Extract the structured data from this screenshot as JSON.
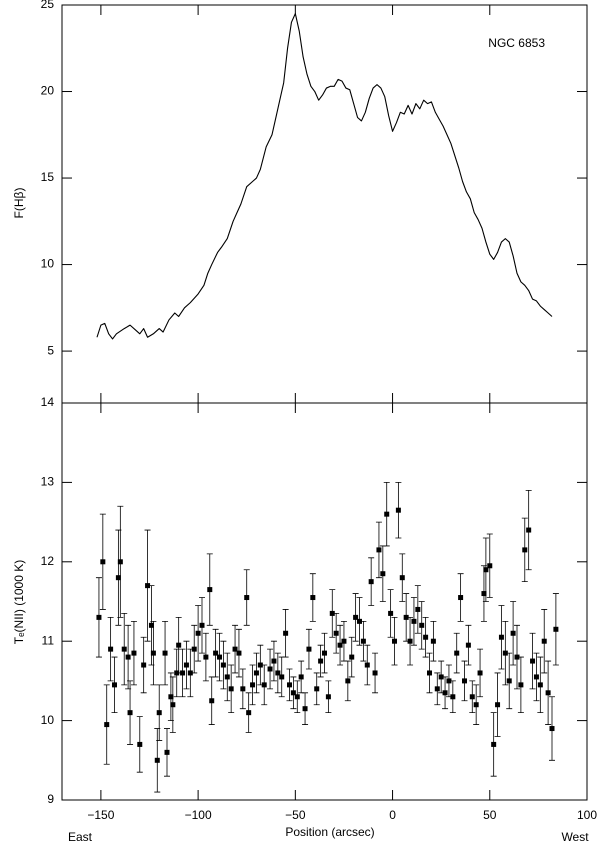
{
  "chart_data": [
    {
      "type": "line",
      "ylabel": "F(Hβ)",
      "annotation": "NGC 6853",
      "color": "#000000",
      "xlim": [
        -170,
        100
      ],
      "xticks": [
        -150,
        -100,
        -50,
        0,
        50,
        100
      ],
      "ylim": [
        2,
        25
      ],
      "yticks": [
        5,
        10,
        15,
        20,
        25
      ],
      "x": [
        -152,
        -150,
        -148,
        -146,
        -144,
        -142,
        -138,
        -135,
        -132,
        -130,
        -128,
        -126,
        -123,
        -120,
        -118,
        -115,
        -112,
        -110,
        -107,
        -104,
        -100,
        -97,
        -95,
        -93,
        -90,
        -88,
        -85,
        -82,
        -80,
        -78,
        -75,
        -72,
        -70,
        -68,
        -65,
        -62,
        -60,
        -58,
        -56,
        -54,
        -52,
        -50,
        -48,
        -46,
        -44,
        -42,
        -40,
        -38,
        -36,
        -34,
        -32,
        -30,
        -28,
        -26,
        -24,
        -22,
        -20,
        -18,
        -16,
        -14,
        -12,
        -10,
        -8,
        -6,
        -4,
        -2,
        0,
        2,
        4,
        6,
        8,
        10,
        12,
        14,
        16,
        18,
        20,
        22,
        24,
        26,
        28,
        30,
        32,
        34,
        36,
        38,
        40,
        42,
        44,
        46,
        48,
        50,
        52,
        54,
        56,
        58,
        60,
        62,
        64,
        66,
        68,
        70,
        72,
        74,
        76,
        78,
        80,
        82
      ],
      "values": [
        5.8,
        6.5,
        6.6,
        6.0,
        5.7,
        6.0,
        6.3,
        6.5,
        6.2,
        6.0,
        6.3,
        5.8,
        6.0,
        6.3,
        6.1,
        6.8,
        7.2,
        7.0,
        7.5,
        7.8,
        8.3,
        8.8,
        9.5,
        10.0,
        10.7,
        11.0,
        11.5,
        12.5,
        13.0,
        13.5,
        14.5,
        14.8,
        15.0,
        15.5,
        16.8,
        17.5,
        18.5,
        19.5,
        20.5,
        22.5,
        24.0,
        24.5,
        23.5,
        22.0,
        21.0,
        20.3,
        20.0,
        19.5,
        19.8,
        20.2,
        20.3,
        20.3,
        20.7,
        20.6,
        20.2,
        20.1,
        19.3,
        18.5,
        18.3,
        18.8,
        19.6,
        20.2,
        20.4,
        20.2,
        19.7,
        18.6,
        17.7,
        18.2,
        18.8,
        18.7,
        19.2,
        18.7,
        19.3,
        19.0,
        19.5,
        19.3,
        19.4,
        18.8,
        18.4,
        18.0,
        17.5,
        17.0,
        16.3,
        15.6,
        14.8,
        14.2,
        13.8,
        13.0,
        12.6,
        12.1,
        11.3,
        10.6,
        10.3,
        10.7,
        11.3,
        11.5,
        11.3,
        10.5,
        9.5,
        9.0,
        8.8,
        8.5,
        8.0,
        7.9,
        7.6,
        7.4,
        7.2,
        7.0
      ]
    },
    {
      "type": "scatter",
      "xlabel": "Position (arcsec)",
      "ylabel": "Tₑ(NII) (1000 K)",
      "annotations": [
        "East",
        "West"
      ],
      "color": "#000000",
      "xlim": [
        -170,
        100
      ],
      "xticks": [
        {
          "value": -150,
          "label": "−150"
        },
        {
          "value": -100,
          "label": "−100"
        },
        {
          "value": -50,
          "label": "−50"
        },
        0,
        50,
        100
      ],
      "ylim": [
        9,
        14
      ],
      "yticks": [
        9,
        10,
        11,
        12,
        13,
        14
      ],
      "x": [
        -151,
        -149,
        -147,
        -145,
        -143,
        -141,
        -140,
        -138,
        -136,
        -135,
        -133,
        -130,
        -128,
        -126,
        -124,
        -123,
        -121,
        -120,
        -117,
        -116,
        -114,
        -113,
        -111,
        -110,
        -108,
        -106,
        -104,
        -102,
        -100,
        -98,
        -96,
        -94,
        -93,
        -91,
        -89,
        -87,
        -85,
        -83,
        -81,
        -79,
        -77,
        -75,
        -74,
        -72,
        -70,
        -68,
        -66,
        -63,
        -61,
        -59,
        -57,
        -55,
        -53,
        -51,
        -49,
        -47,
        -45,
        -43,
        -41,
        -39,
        -37,
        -35,
        -33,
        -31,
        -29,
        -27,
        -25,
        -23,
        -21,
        -19,
        -17,
        -15,
        -13,
        -11,
        -9,
        -7,
        -5,
        -3,
        -1,
        1,
        3,
        5,
        7,
        9,
        11,
        13,
        15,
        17,
        19,
        21,
        23,
        25,
        27,
        29,
        31,
        33,
        35,
        37,
        39,
        41,
        43,
        45,
        47,
        48,
        50,
        52,
        54,
        56,
        58,
        60,
        62,
        64,
        66,
        68,
        70,
        72,
        74,
        76,
        78,
        80,
        82,
        84
      ],
      "values": [
        11.3,
        12.0,
        9.95,
        10.9,
        10.45,
        11.8,
        12.0,
        10.9,
        10.8,
        10.1,
        10.85,
        9.7,
        10.7,
        11.7,
        11.2,
        10.85,
        9.5,
        10.1,
        10.85,
        9.6,
        10.3,
        10.2,
        10.6,
        10.95,
        10.6,
        10.7,
        10.6,
        10.9,
        11.1,
        11.2,
        10.8,
        11.65,
        10.25,
        10.85,
        10.8,
        10.7,
        10.55,
        10.4,
        10.9,
        10.85,
        10.4,
        11.55,
        10.1,
        10.45,
        10.6,
        10.7,
        10.45,
        10.65,
        10.75,
        10.6,
        10.55,
        11.1,
        10.45,
        10.35,
        10.3,
        10.55,
        10.15,
        10.9,
        11.55,
        10.4,
        10.75,
        10.85,
        10.3,
        11.35,
        11.1,
        10.95,
        11.0,
        10.5,
        10.8,
        11.3,
        11.25,
        11.0,
        10.7,
        11.75,
        10.6,
        12.15,
        11.85,
        12.6,
        11.35,
        11.0,
        12.65,
        11.8,
        11.3,
        11.0,
        11.25,
        11.4,
        11.2,
        11.05,
        10.6,
        11.0,
        10.4,
        10.55,
        10.35,
        10.5,
        10.3,
        10.85,
        11.55,
        10.5,
        10.95,
        10.3,
        10.2,
        10.6,
        11.6,
        11.9,
        11.95,
        9.7,
        10.2,
        11.05,
        10.85,
        10.5,
        11.1,
        10.8,
        10.45,
        12.15,
        12.4,
        10.75,
        10.55,
        10.45,
        11.0,
        10.35,
        9.9,
        11.15
      ],
      "errors": [
        0.5,
        0.6,
        0.5,
        0.4,
        0.35,
        0.6,
        0.7,
        0.45,
        0.4,
        0.4,
        0.4,
        0.35,
        0.35,
        0.7,
        0.5,
        0.4,
        0.4,
        0.35,
        0.4,
        0.3,
        0.3,
        0.35,
        0.3,
        0.35,
        0.3,
        0.3,
        0.3,
        0.3,
        0.35,
        0.35,
        0.3,
        0.45,
        0.3,
        0.3,
        0.3,
        0.3,
        0.3,
        0.3,
        0.3,
        0.3,
        0.25,
        0.35,
        0.25,
        0.25,
        0.25,
        0.25,
        0.25,
        0.25,
        0.25,
        0.25,
        0.25,
        0.3,
        0.2,
        0.2,
        0.2,
        0.2,
        0.2,
        0.25,
        0.3,
        0.2,
        0.2,
        0.25,
        0.2,
        0.3,
        0.25,
        0.25,
        0.25,
        0.25,
        0.25,
        0.3,
        0.3,
        0.25,
        0.25,
        0.3,
        0.25,
        0.35,
        0.35,
        0.4,
        0.3,
        0.3,
        0.35,
        0.3,
        0.3,
        0.3,
        0.3,
        0.3,
        0.3,
        0.25,
        0.25,
        0.25,
        0.2,
        0.2,
        0.2,
        0.2,
        0.2,
        0.25,
        0.3,
        0.25,
        0.25,
        0.2,
        0.25,
        0.3,
        0.35,
        0.4,
        0.4,
        0.4,
        0.4,
        0.4,
        0.4,
        0.35,
        0.4,
        0.4,
        0.35,
        0.4,
        0.5,
        0.35,
        0.3,
        0.35,
        0.4,
        0.4,
        0.4,
        0.45
      ]
    }
  ]
}
